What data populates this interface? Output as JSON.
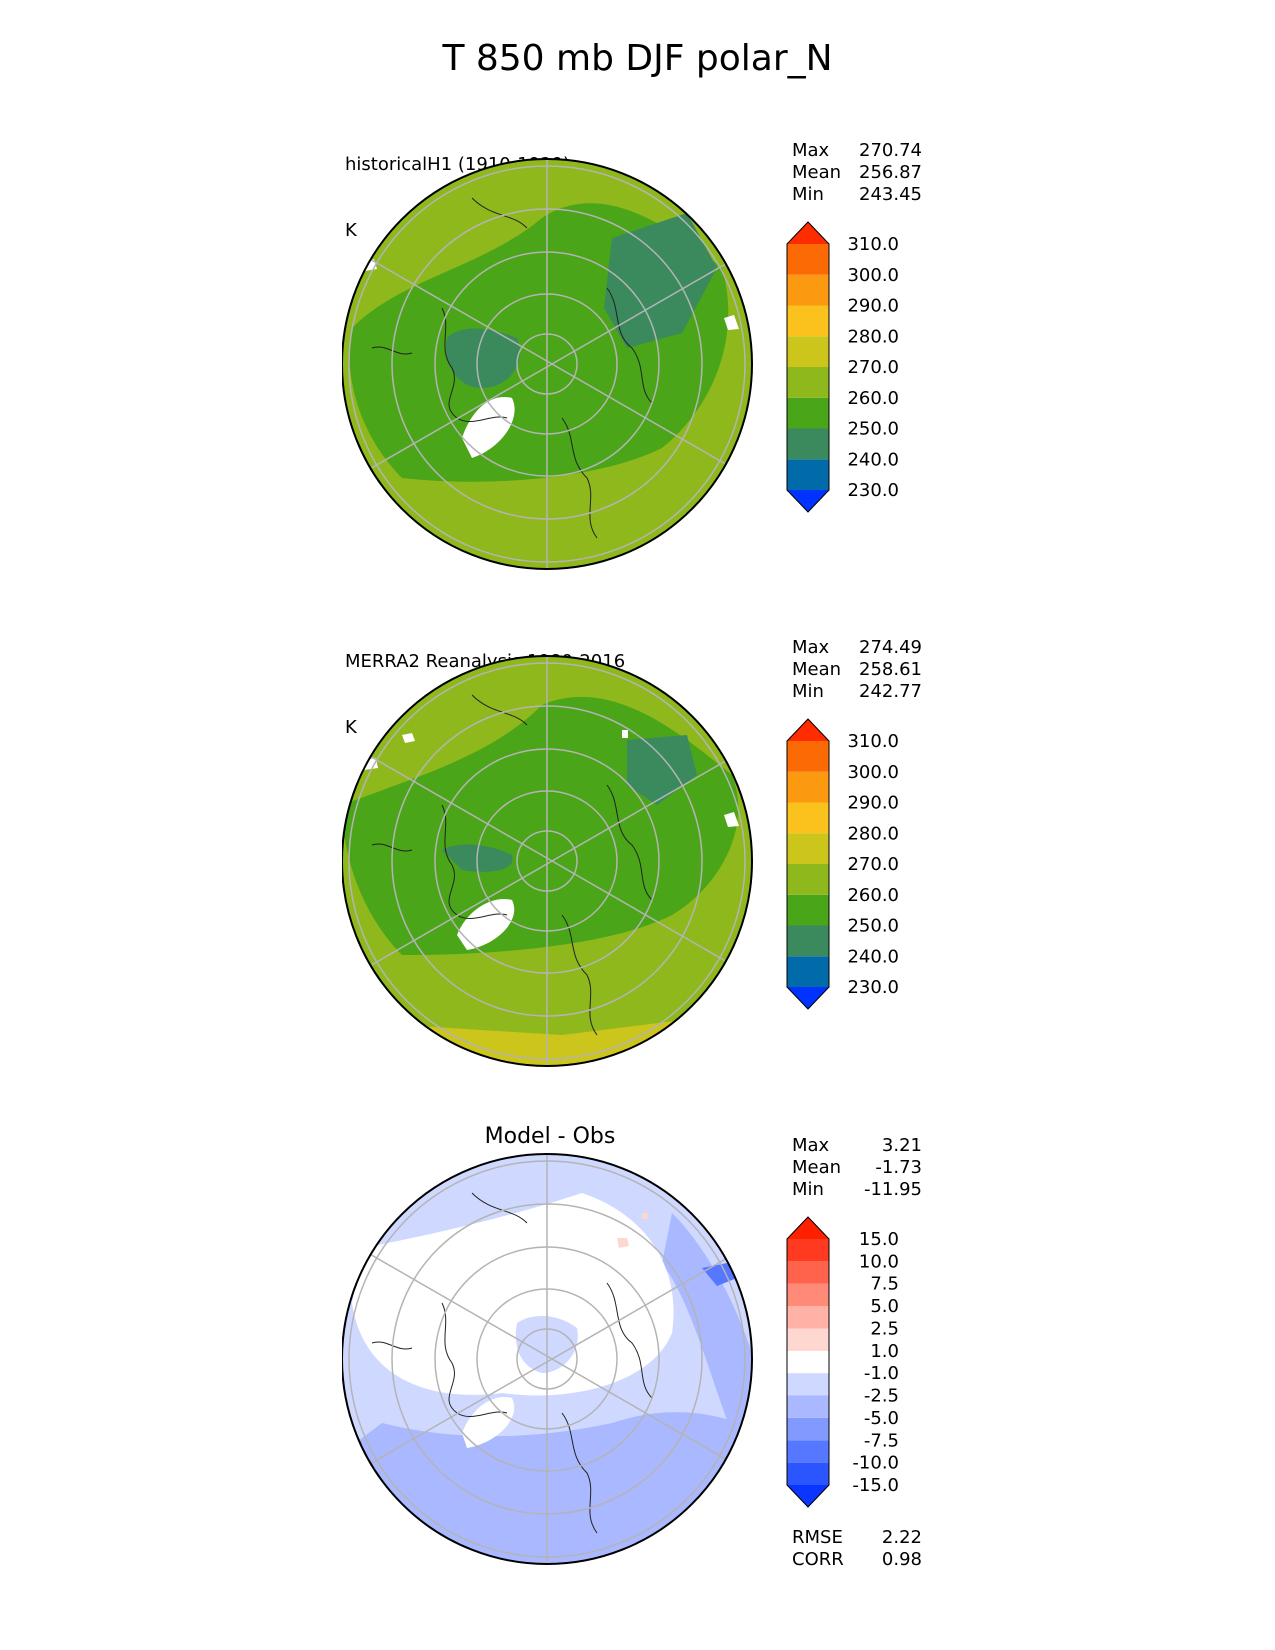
{
  "title": "T 850 mb DJF polar_N",
  "chart_data": [
    {
      "type": "heatmap",
      "projection": "polar-stereographic-north",
      "title": "historicalH1 (1910-1929)",
      "units": "K",
      "stats": {
        "max": "270.74",
        "mean": "256.87",
        "min": "243.45"
      },
      "stat_labels": {
        "max": "Max",
        "mean": "Mean",
        "min": "Min"
      },
      "colorbar": {
        "levels": [
          "230.0",
          "240.0",
          "250.0",
          "260.0",
          "270.0",
          "280.0",
          "290.0",
          "300.0",
          "310.0"
        ],
        "colors": [
          "#0033ff",
          "#006ba8",
          "#3a8a5e",
          "#4aa519",
          "#8fb81c",
          "#cbc51c",
          "#fbc11c",
          "#fb9a10",
          "#fb6a05",
          "#ff2c00"
        ],
        "extend": "both"
      }
    },
    {
      "type": "heatmap",
      "projection": "polar-stereographic-north",
      "title": "MERRA2 Reanalysis 1980-2016",
      "units": "K",
      "stats": {
        "max": "274.49",
        "mean": "258.61",
        "min": "242.77"
      },
      "stat_labels": {
        "max": "Max",
        "mean": "Mean",
        "min": "Min"
      },
      "colorbar": {
        "levels": [
          "230.0",
          "240.0",
          "250.0",
          "260.0",
          "270.0",
          "280.0",
          "290.0",
          "300.0",
          "310.0"
        ],
        "colors": [
          "#0033ff",
          "#006ba8",
          "#3a8a5e",
          "#4aa519",
          "#8fb81c",
          "#cbc51c",
          "#fbc11c",
          "#fb9a10",
          "#fb6a05",
          "#ff2c00"
        ],
        "extend": "both"
      }
    },
    {
      "type": "heatmap",
      "projection": "polar-stereographic-north",
      "title": "Model - Obs",
      "stats": {
        "max": "3.21",
        "mean": "-1.73",
        "min": "-11.95"
      },
      "stat_labels": {
        "max": "Max",
        "mean": "Mean",
        "min": "Min"
      },
      "metrics": {
        "rmse": "2.22",
        "corr": "0.98"
      },
      "metric_labels": {
        "rmse": "RMSE",
        "corr": "CORR"
      },
      "colorbar": {
        "levels": [
          "-15.0",
          "-10.0",
          "-7.5",
          "-5.0",
          "-2.5",
          "-1.0",
          "1.0",
          "2.5",
          "5.0",
          "7.5",
          "10.0",
          "15.0"
        ],
        "colors": [
          "#0b36ff",
          "#2b55ff",
          "#5677ff",
          "#8299ff",
          "#a9b8ff",
          "#cfd8ff",
          "#ffffff",
          "#ffd7d1",
          "#ffb2a5",
          "#ff8a78",
          "#ff634c",
          "#ff3a21",
          "#ff2000"
        ],
        "extend": "both"
      }
    }
  ]
}
